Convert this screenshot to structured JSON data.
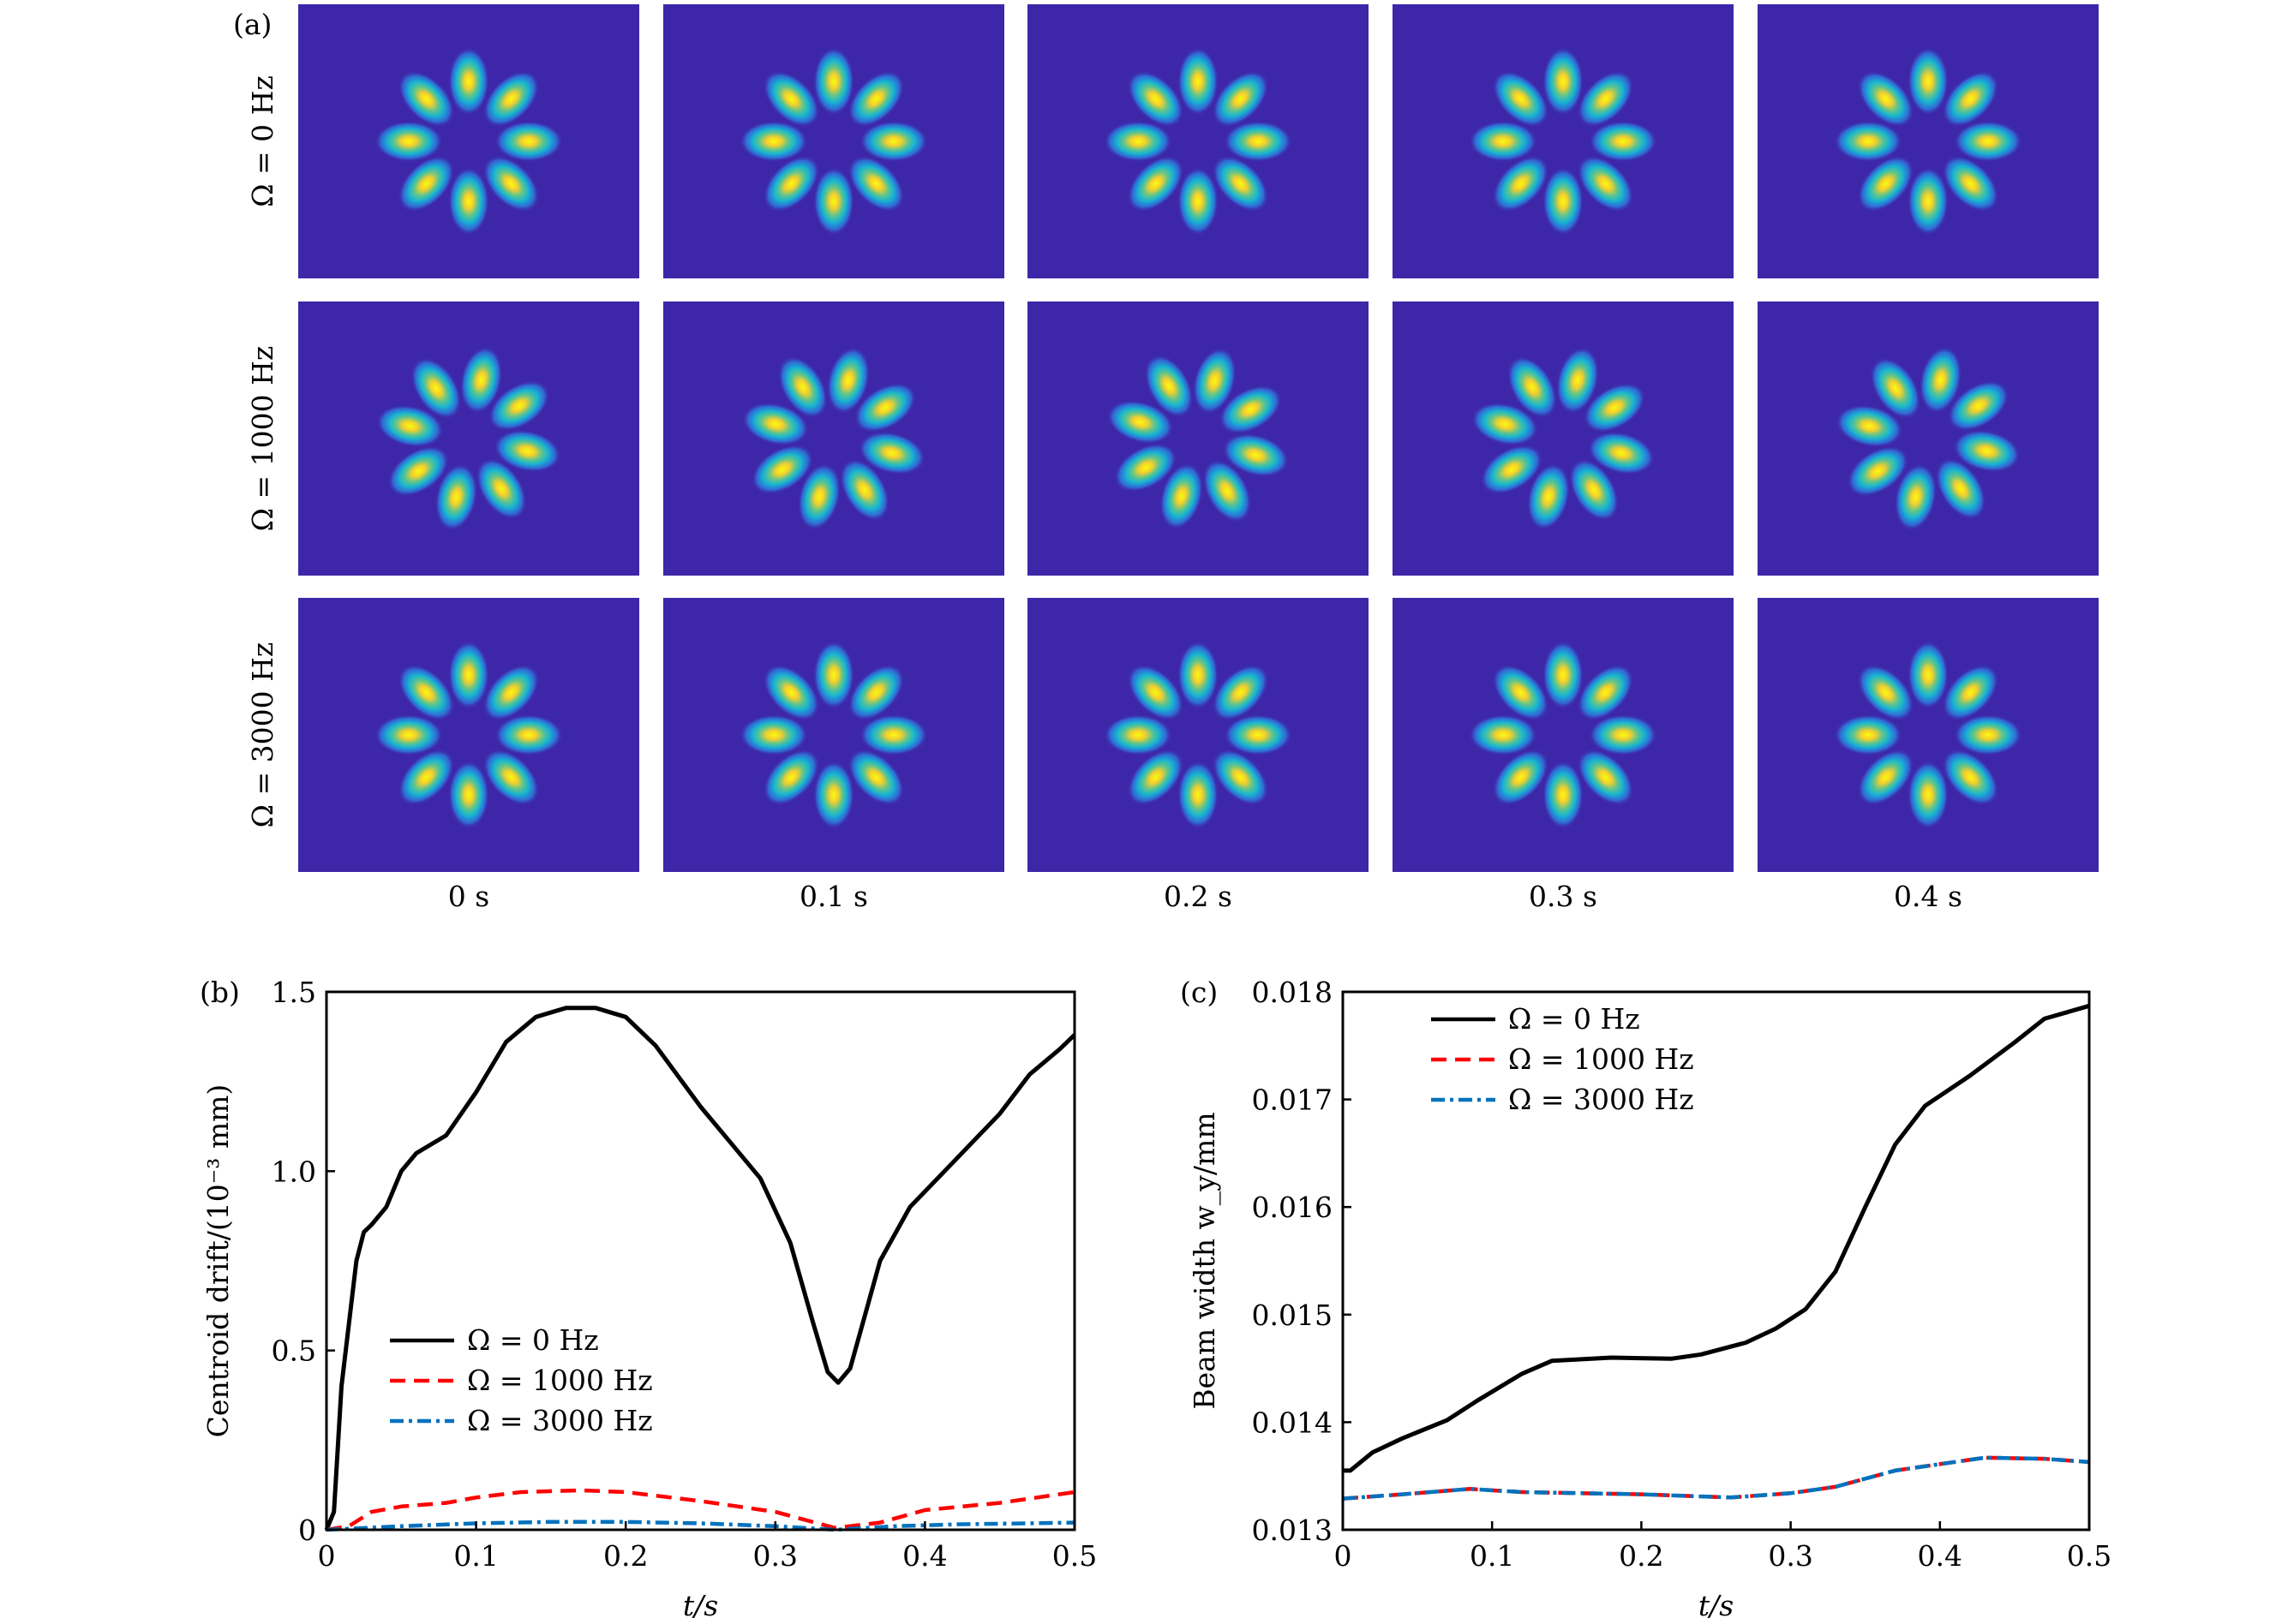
{
  "panel_a": {
    "label": "(a)",
    "row_labels": [
      "Ω = 0 Hz",
      "Ω = 1000 Hz",
      "Ω = 3000 Hz"
    ],
    "col_labels": [
      "0 s",
      "0.1 s",
      "0.2 s",
      "0.3 s",
      "0.4 s"
    ],
    "colors": {
      "background": "#3e26a8",
      "peak": "#f9fb0e",
      "mid": "#1ab1d0"
    }
  },
  "chart_data": [
    {
      "type": "line",
      "panel_label": "(b)",
      "xlabel": "t/s",
      "ylabel": "Centroid drift/(10⁻³ mm)",
      "xlim": [
        0,
        0.5
      ],
      "ylim": [
        0,
        1.5
      ],
      "xticks": [
        0,
        0.1,
        0.2,
        0.3,
        0.4,
        0.5
      ],
      "xtick_labels": [
        "0",
        "0.1",
        "0.2",
        "0.3",
        "0.4",
        "0.5"
      ],
      "yticks": [
        0,
        0.5,
        1.0,
        1.5
      ],
      "ytick_labels": [
        "0",
        "0.5",
        "1.0",
        "1.5"
      ],
      "legend": "center-left",
      "series": [
        {
          "name": "Ω = 0 Hz",
          "color": "#000000",
          "style": "solid",
          "x": [
            0,
            0.005,
            0.01,
            0.02,
            0.025,
            0.03,
            0.04,
            0.05,
            0.06,
            0.08,
            0.1,
            0.12,
            0.14,
            0.16,
            0.18,
            0.2,
            0.22,
            0.25,
            0.27,
            0.29,
            0.31,
            0.325,
            0.335,
            0.342,
            0.35,
            0.36,
            0.37,
            0.39,
            0.42,
            0.45,
            0.47,
            0.49,
            0.5
          ],
          "y": [
            0,
            0.05,
            0.4,
            0.75,
            0.83,
            0.85,
            0.9,
            1.0,
            1.05,
            1.1,
            1.22,
            1.36,
            1.43,
            1.455,
            1.455,
            1.43,
            1.35,
            1.18,
            1.08,
            0.98,
            0.8,
            0.58,
            0.44,
            0.41,
            0.45,
            0.6,
            0.75,
            0.9,
            1.03,
            1.16,
            1.27,
            1.34,
            1.38
          ]
        },
        {
          "name": "Ω = 1000 Hz",
          "color": "#ff0000",
          "style": "dashed",
          "x": [
            0,
            0.015,
            0.03,
            0.05,
            0.08,
            0.1,
            0.13,
            0.17,
            0.2,
            0.25,
            0.3,
            0.34,
            0.37,
            0.4,
            0.45,
            0.5
          ],
          "y": [
            0,
            0.01,
            0.05,
            0.065,
            0.075,
            0.09,
            0.105,
            0.11,
            0.105,
            0.08,
            0.05,
            0.005,
            0.02,
            0.055,
            0.075,
            0.105
          ]
        },
        {
          "name": "Ω = 3000 Hz",
          "color": "#0072bd",
          "style": "dashdot",
          "x": [
            0,
            0.05,
            0.1,
            0.15,
            0.2,
            0.25,
            0.3,
            0.34,
            0.38,
            0.42,
            0.5
          ],
          "y": [
            0,
            0.01,
            0.018,
            0.022,
            0.022,
            0.018,
            0.01,
            0.0,
            0.01,
            0.015,
            0.02
          ]
        }
      ]
    },
    {
      "type": "line",
      "panel_label": "(c)",
      "xlabel": "t/s",
      "ylabel": "Beam width w_y/mm",
      "xlim": [
        0,
        0.5
      ],
      "ylim": [
        0.013,
        0.018
      ],
      "xticks": [
        0,
        0.1,
        0.2,
        0.3,
        0.4,
        0.5
      ],
      "xtick_labels": [
        "0",
        "0.1",
        "0.2",
        "0.3",
        "0.4",
        "0.5"
      ],
      "yticks": [
        0.013,
        0.014,
        0.015,
        0.016,
        0.017,
        0.018
      ],
      "ytick_labels": [
        "0.013",
        "0.014",
        "0.015",
        "0.016",
        "0.017",
        "0.018"
      ],
      "legend": "top-left",
      "series": [
        {
          "name": "Ω = 0 Hz",
          "color": "#000000",
          "style": "solid",
          "x": [
            0,
            0.005,
            0.02,
            0.04,
            0.07,
            0.09,
            0.12,
            0.14,
            0.18,
            0.22,
            0.24,
            0.27,
            0.29,
            0.31,
            0.33,
            0.35,
            0.37,
            0.39,
            0.42,
            0.45,
            0.47,
            0.5
          ],
          "y": [
            0.01355,
            0.01355,
            0.01372,
            0.01385,
            0.01402,
            0.0142,
            0.01445,
            0.01457,
            0.0146,
            0.01459,
            0.01463,
            0.01474,
            0.01487,
            0.01505,
            0.0154,
            0.016,
            0.01658,
            0.01694,
            0.01722,
            0.01753,
            0.01775,
            0.01787
          ]
        },
        {
          "name": "Ω = 1000 Hz",
          "color": "#ff0000",
          "style": "dashed",
          "x": [
            0,
            0.04,
            0.085,
            0.12,
            0.2,
            0.26,
            0.3,
            0.33,
            0.37,
            0.43,
            0.47,
            0.5
          ],
          "y": [
            0.01329,
            0.01333,
            0.01338,
            0.01335,
            0.01333,
            0.0133,
            0.01334,
            0.0134,
            0.01355,
            0.01367,
            0.01366,
            0.01363
          ]
        },
        {
          "name": "Ω = 3000 Hz",
          "color": "#0072bd",
          "style": "dashdot",
          "x": [
            0,
            0.04,
            0.085,
            0.12,
            0.2,
            0.26,
            0.3,
            0.33,
            0.37,
            0.43,
            0.47,
            0.5
          ],
          "y": [
            0.01329,
            0.01333,
            0.01338,
            0.01335,
            0.01333,
            0.0133,
            0.01334,
            0.0134,
            0.01355,
            0.01367,
            0.01366,
            0.01363
          ]
        }
      ]
    }
  ]
}
